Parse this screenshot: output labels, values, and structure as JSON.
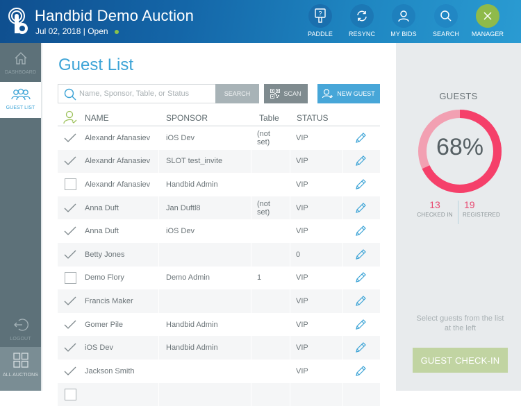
{
  "header": {
    "title": "Handbid Demo Auction",
    "date": "Jul 02, 2018",
    "separator": "|",
    "status": "Open",
    "status_color": "#8bc34a",
    "buttons": [
      {
        "id": "paddle",
        "label": "PADDLE",
        "icon": "paddle-icon",
        "bg": "#1a6fae"
      },
      {
        "id": "resync",
        "label": "RESYNC",
        "icon": "resync-icon",
        "bg": "#1c78b5"
      },
      {
        "id": "my-bids",
        "label": "MY BIDS",
        "icon": "user-icon",
        "bg": "#1e80bd"
      },
      {
        "id": "search",
        "label": "SEARCH",
        "icon": "search-icon",
        "bg": "#2187c4"
      },
      {
        "id": "manager",
        "label": "MANAGER",
        "icon": "close-icon",
        "bg": "#8fba4a"
      }
    ]
  },
  "sidebar": {
    "items": [
      {
        "id": "dashboard",
        "label": "DASHBOARD",
        "icon": "home-icon",
        "active": false
      },
      {
        "id": "guest-list",
        "label": "GUEST LIST",
        "icon": "users-icon",
        "active": true
      },
      {
        "id": "logout",
        "label": "LOGOUT",
        "icon": "logout-icon",
        "active": false
      },
      {
        "id": "all-auctions",
        "label": "ALL AUCTIONS",
        "icon": "grid-icon",
        "active": false
      }
    ]
  },
  "main": {
    "title": "Guest List",
    "search": {
      "placeholder": "Name, Sponsor, Table, or Status",
      "value": "",
      "button_label": "SEARCH"
    },
    "scan_label": "SCAN",
    "new_guest_label": "NEW GUEST",
    "table": {
      "columns": [
        "NAME",
        "SPONSOR",
        "Table",
        "STATUS"
      ],
      "rows": [
        {
          "checked": true,
          "name": "Alexandr Afanasiev",
          "sponsor": "iOS Dev",
          "table": "(not set)",
          "status": "VIP"
        },
        {
          "checked": true,
          "name": "Alexandr Afanasiev",
          "sponsor": "SLOT test_invite",
          "table": "",
          "status": "VIP"
        },
        {
          "checked": false,
          "name": "Alexandr Afanasiev",
          "sponsor": "Handbid Admin",
          "table": "",
          "status": "VIP"
        },
        {
          "checked": true,
          "name": "Anna Duft",
          "sponsor": "Jan Duftl8",
          "table": "(not set)",
          "status": "VIP"
        },
        {
          "checked": true,
          "name": "Anna Duft",
          "sponsor": "iOS Dev",
          "table": "",
          "status": "VIP"
        },
        {
          "checked": true,
          "name": "Betty Jones",
          "sponsor": "",
          "table": "",
          "status": "0"
        },
        {
          "checked": false,
          "name": "Demo Flory",
          "sponsor": "Demo Admin",
          "table": "1",
          "status": "VIP"
        },
        {
          "checked": true,
          "name": "Francis Maker",
          "sponsor": "",
          "table": "",
          "status": "VIP"
        },
        {
          "checked": true,
          "name": "Gomer Pile",
          "sponsor": "Handbid Admin",
          "table": "",
          "status": "VIP"
        },
        {
          "checked": true,
          "name": "iOS Dev",
          "sponsor": "Handbid Admin",
          "table": "",
          "status": "VIP"
        },
        {
          "checked": true,
          "name": "Jackson Smith",
          "sponsor": "",
          "table": "",
          "status": "VIP"
        },
        {
          "checked": false,
          "name": "",
          "sponsor": "",
          "table": "",
          "status": ""
        }
      ]
    }
  },
  "stats": {
    "title": "GUESTS",
    "percent": 68,
    "percent_label": "68%",
    "checked_in": "13",
    "checked_in_label": "CHECKED IN",
    "registered": "19",
    "registered_label": "REGISTERED",
    "colors": {
      "checked": "#f5406a",
      "remaining": "#f2a0b2"
    },
    "hint": "Select guests from the list at the left",
    "checkin_button": "GUEST CHECK-IN"
  }
}
